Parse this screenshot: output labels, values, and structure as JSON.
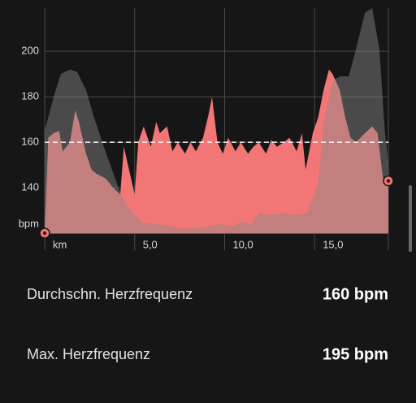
{
  "chart_data": {
    "type": "area",
    "xlim": [
      0,
      19.1
    ],
    "ylim": [
      120,
      219
    ],
    "xticks": [
      {
        "value": 0,
        "label": "km"
      },
      {
        "value": 5,
        "label": "5,0"
      },
      {
        "value": 10,
        "label": "10,0"
      },
      {
        "value": 15,
        "label": "15,0"
      }
    ],
    "yticks": [
      {
        "value": 120,
        "label": "bpm"
      },
      140,
      160,
      180,
      200
    ],
    "grid": true,
    "reference_line": 160,
    "series": [
      {
        "color": "#f27676",
        "x": [
          0.0,
          0.2,
          0.5,
          0.8,
          1.0,
          1.4,
          1.7,
          1.9,
          2.3,
          2.6,
          2.9,
          3.4,
          3.8,
          4.2,
          4.4,
          4.6,
          5.0,
          5.2,
          5.5,
          5.9,
          6.2,
          6.4,
          6.8,
          7.1,
          7.4,
          7.8,
          8.1,
          8.4,
          8.8,
          9.1,
          9.3,
          9.6,
          9.9,
          10.2,
          10.6,
          10.9,
          11.3,
          11.6,
          11.9,
          12.3,
          12.6,
          12.9,
          13.3,
          13.6,
          14.0,
          14.3,
          14.5,
          14.9,
          15.2,
          15.5,
          15.8,
          16.0,
          16.4,
          16.7,
          17.0,
          17.3,
          17.8,
          18.2,
          18.5,
          18.8,
          19.1
        ],
        "values": [
          120,
          162,
          164,
          165,
          156,
          160,
          174,
          169,
          155,
          148,
          146,
          144,
          140,
          137,
          158,
          151,
          137,
          160,
          167,
          158,
          169,
          164,
          167,
          156,
          160,
          155,
          160,
          156,
          162,
          172,
          180,
          160,
          155,
          162,
          156,
          160,
          155,
          158,
          160,
          155,
          161,
          158,
          160,
          162,
          156,
          164,
          148,
          164,
          171,
          183,
          192,
          190,
          183,
          171,
          162,
          160,
          164,
          167,
          164,
          144,
          143
        ]
      },
      {
        "color": "#8a8a8a",
        "x": [
          0.0,
          0.5,
          0.9,
          1.4,
          1.8,
          2.3,
          2.7,
          3.2,
          3.6,
          4.1,
          4.5,
          5.0,
          5.4,
          6.1,
          7.0,
          7.9,
          8.8,
          9.7,
          10.4,
          11.0,
          11.5,
          11.9,
          12.6,
          13.3,
          13.9,
          14.6,
          15.2,
          15.5,
          16.0,
          16.4,
          16.9,
          17.3,
          17.8,
          18.2,
          18.6,
          18.9,
          19.1
        ],
        "values": [
          165,
          180,
          190,
          192,
          191,
          183,
          172,
          160,
          151,
          140,
          133,
          128,
          125,
          124,
          123,
          122,
          122.5,
          124,
          123,
          125,
          124,
          129,
          128,
          129,
          128,
          129,
          142,
          169,
          187,
          189,
          189,
          201,
          217,
          219,
          201,
          165,
          151
        ]
      }
    ]
  },
  "stats": [
    {
      "label": "Durchschn. Herzfrequenz",
      "value": "160 bpm"
    },
    {
      "label": "Max. Herzfrequenz",
      "value": "195 bpm"
    }
  ]
}
